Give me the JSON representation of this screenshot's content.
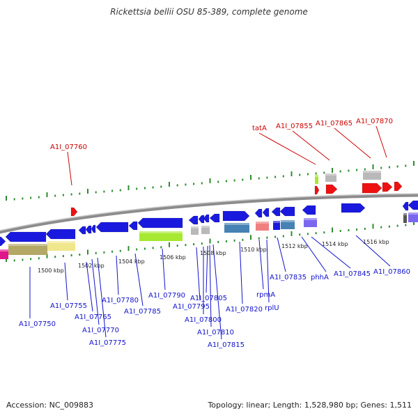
{
  "title": "Rickettsia bellii OSU 85-389, complete genome",
  "footer": {
    "accession": "Accession: NC_009883",
    "topology": "Topology: linear; Length: 1,528,980 bp; Genes: 1,511"
  },
  "colors": {
    "gene_blue": "#1a1adf",
    "gene_red": "#ee1111",
    "label_blue": "#1111cc",
    "label_red": "#cc0000",
    "tick_green": "#2e8b2e",
    "backbone": "#8c8c8c"
  },
  "scale_labels": [
    "1500 kbp",
    "1502 kbp",
    "1504 kbp",
    "1506 kbp",
    "1508 kbp",
    "1510 kbp",
    "1512 kbp",
    "1514 kbp",
    "1516 kbp"
  ],
  "top_labels": [
    "A1I_07760",
    "tatA",
    "A1I_07855",
    "A1I_07865",
    "A1I_07870"
  ],
  "bottom_labels": [
    "A1I_07750",
    "A1I_07755",
    "A1I_07765",
    "A1I_07770",
    "A1I_07775",
    "A1I_07780",
    "A1I_07785",
    "A1I_07790",
    "A1I_07795",
    "A1I_07800",
    "A1I_07805",
    "A1I_07810",
    "A1I_07815",
    "A1I_07820",
    "rpmA",
    "rplU",
    "A1I_07835",
    "phhA",
    "A1I_07845",
    "A1I_07860"
  ]
}
